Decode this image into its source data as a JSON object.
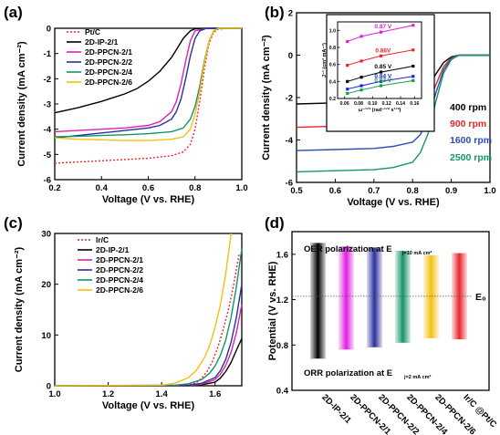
{
  "panels": [
    {
      "label": "(a)",
      "chart_data": {
        "type": "line",
        "xlabel": "Voltage (V vs. RHE)",
        "ylabel": "Current density (mA cm⁻²)",
        "xlim": [
          0.2,
          1.0
        ],
        "ylim": [
          -6,
          0
        ],
        "xticks": [
          "0.2",
          "0.4",
          "0.6",
          "0.8",
          "1.0"
        ],
        "yticks": [
          "0",
          "-1",
          "-2",
          "-3",
          "-4",
          "-5",
          "-6"
        ],
        "legend_position": "top-left",
        "series": [
          {
            "name": "Pt/C",
            "color": "#e8262a",
            "dash": true,
            "x": [
              0.2,
              0.3,
              0.4,
              0.5,
              0.6,
              0.7,
              0.75,
              0.78,
              0.8,
              0.82,
              0.84,
              0.86,
              0.88,
              0.9,
              0.95,
              1.0
            ],
            "y": [
              -5.35,
              -5.3,
              -5.25,
              -5.2,
              -5.15,
              -5.05,
              -4.9,
              -4.6,
              -4.0,
              -2.9,
              -1.6,
              -0.6,
              -0.15,
              -0.03,
              0,
              0
            ]
          },
          {
            "name": "2D-IP-2/1",
            "color": "#000000",
            "dash": false,
            "x": [
              0.2,
              0.3,
              0.4,
              0.5,
              0.55,
              0.6,
              0.65,
              0.7,
              0.72,
              0.75,
              0.78,
              0.8,
              0.85,
              0.9,
              1.0
            ],
            "y": [
              -3.35,
              -3.15,
              -2.9,
              -2.6,
              -2.4,
              -2.1,
              -1.7,
              -1.15,
              -0.85,
              -0.4,
              -0.1,
              -0.02,
              0,
              0,
              0
            ]
          },
          {
            "name": "2D-PPCN-2/1",
            "color": "#e020b0",
            "dash": false,
            "x": [
              0.2,
              0.3,
              0.4,
              0.5,
              0.6,
              0.65,
              0.7,
              0.72,
              0.74,
              0.76,
              0.78,
              0.8,
              0.85,
              1.0
            ],
            "y": [
              -4.1,
              -4.05,
              -4.0,
              -3.95,
              -3.85,
              -3.7,
              -3.3,
              -2.9,
              -2.2,
              -1.3,
              -0.5,
              -0.1,
              0,
              0
            ]
          },
          {
            "name": "2D-PPCN-2/2",
            "color": "#2b2f9e",
            "dash": false,
            "x": [
              0.2,
              0.3,
              0.4,
              0.5,
              0.6,
              0.65,
              0.7,
              0.72,
              0.74,
              0.76,
              0.78,
              0.8,
              0.82,
              0.85,
              1.0
            ],
            "y": [
              -4.35,
              -4.25,
              -4.15,
              -4.05,
              -3.95,
              -3.85,
              -3.6,
              -3.3,
              -2.8,
              -2.0,
              -1.1,
              -0.4,
              -0.1,
              0,
              0
            ]
          },
          {
            "name": "2D-PPCN-2/4",
            "color": "#14946a",
            "dash": false,
            "x": [
              0.2,
              0.3,
              0.4,
              0.5,
              0.6,
              0.7,
              0.75,
              0.78,
              0.8,
              0.82,
              0.84,
              0.86,
              0.88,
              0.9,
              1.0
            ],
            "y": [
              -4.3,
              -4.28,
              -4.25,
              -4.22,
              -4.18,
              -4.1,
              -3.95,
              -3.6,
              -3.1,
              -2.3,
              -1.3,
              -0.5,
              -0.1,
              0,
              0
            ]
          },
          {
            "name": "2D-PPCN-2/6",
            "color": "#f2c10f",
            "dash": false,
            "x": [
              0.2,
              0.3,
              0.4,
              0.5,
              0.6,
              0.7,
              0.75,
              0.78,
              0.8,
              0.82,
              0.84,
              0.86,
              0.88,
              0.9,
              1.0
            ],
            "y": [
              -4.35,
              -4.4,
              -4.42,
              -4.45,
              -4.45,
              -4.4,
              -4.3,
              -4.0,
              -3.4,
              -2.5,
              -1.4,
              -0.5,
              -0.1,
              0,
              0
            ]
          }
        ]
      }
    },
    {
      "label": "(b)",
      "chart_data": {
        "type": "line",
        "xlabel": "Voltage (V vs. RHE)",
        "ylabel": "Current density (mA cm⁻²)",
        "xlim": [
          0.5,
          1.0
        ],
        "ylim": [
          -6,
          2
        ],
        "xticks": [
          "0.5",
          "0.6",
          "0.7",
          "0.8",
          "0.9",
          "1.0"
        ],
        "yticks": [
          "-6",
          "-4",
          "-2",
          "0",
          "2"
        ],
        "legend_position": "right",
        "series": [
          {
            "name": "400 rpm",
            "color": "#000000",
            "x": [
              0.5,
              0.6,
              0.7,
              0.75,
              0.8,
              0.82,
              0.84,
              0.86,
              0.88,
              0.9,
              0.92,
              1.0
            ],
            "y": [
              -2.3,
              -2.25,
              -2.2,
              -2.15,
              -2.05,
              -1.9,
              -1.5,
              -0.9,
              -0.35,
              -0.08,
              0,
              0
            ]
          },
          {
            "name": "900 rpm",
            "color": "#e8262a",
            "x": [
              0.5,
              0.6,
              0.7,
              0.75,
              0.8,
              0.82,
              0.84,
              0.86,
              0.88,
              0.9,
              0.92,
              1.0
            ],
            "y": [
              -3.4,
              -3.35,
              -3.3,
              -3.25,
              -3.1,
              -2.85,
              -2.3,
              -1.4,
              -0.55,
              -0.12,
              0,
              0
            ]
          },
          {
            "name": "1600 rpm",
            "color": "#2b4fb5",
            "x": [
              0.5,
              0.6,
              0.7,
              0.75,
              0.8,
              0.82,
              0.84,
              0.86,
              0.88,
              0.9,
              0.92,
              1.0
            ],
            "y": [
              -4.5,
              -4.45,
              -4.4,
              -4.3,
              -4.1,
              -3.75,
              -3.0,
              -1.8,
              -0.7,
              -0.15,
              0,
              0
            ]
          },
          {
            "name": "2500 rpm",
            "color": "#14946a",
            "x": [
              0.5,
              0.6,
              0.7,
              0.75,
              0.8,
              0.82,
              0.84,
              0.86,
              0.88,
              0.9,
              0.92,
              1.0
            ],
            "y": [
              -5.5,
              -5.45,
              -5.4,
              -5.3,
              -5.05,
              -4.6,
              -3.7,
              -2.2,
              -0.85,
              -0.2,
              0,
              0
            ]
          }
        ],
        "inset": {
          "type": "scatter",
          "xlabel": "ω⁻¹ᐟ² (rad⁻¹ᐟ² s¹ᐟ²)",
          "ylabel": "J⁻¹ (cm² mA⁻¹)",
          "xlim": [
            0.05,
            0.17
          ],
          "ylim": [
            0.2,
            1.1
          ],
          "xticks": [
            "0.06",
            "0.08",
            "0.10",
            "0.12",
            "0.14",
            "0.16"
          ],
          "yticks": [
            "0.2",
            "0.4",
            "0.6",
            "0.8",
            "1.0"
          ],
          "series": [
            {
              "label": "0.87 V",
              "color": "#e020e0",
              "x": [
                0.064,
                0.084,
                0.112,
                0.158
              ],
              "y": [
                0.87,
                0.93,
                0.98,
                1.06
              ]
            },
            {
              "label": "0.86V",
              "color": "#e8262a",
              "x": [
                0.064,
                0.084,
                0.112,
                0.158
              ],
              "y": [
                0.59,
                0.64,
                0.7,
                0.77
              ]
            },
            {
              "label": "0.85 V",
              "color": "#000000",
              "x": [
                0.064,
                0.084,
                0.112,
                0.158
              ],
              "y": [
                0.4,
                0.45,
                0.51,
                0.58
              ]
            },
            {
              "label": "0.84 V",
              "color": "#2020e0",
              "x": [
                0.064,
                0.084,
                0.112,
                0.158
              ],
              "y": [
                0.31,
                0.35,
                0.4,
                0.46
              ]
            },
            {
              "label": "0.83 V",
              "color": "#14a050",
              "x": [
                0.064,
                0.084,
                0.112,
                0.158
              ],
              "y": [
                0.26,
                0.3,
                0.35,
                0.41
              ]
            }
          ]
        }
      }
    },
    {
      "label": "(c)",
      "chart_data": {
        "type": "line",
        "xlabel": "Voltage (V vs. RHE)",
        "ylabel": "Current density (mA cm⁻²)",
        "xlim": [
          1.0,
          1.7
        ],
        "ylim": [
          0,
          30
        ],
        "xticks": [
          "1.0",
          "1.2",
          "1.4",
          "1.6"
        ],
        "yticks": [
          "0",
          "10",
          "20",
          "30"
        ],
        "legend_position": "top-center",
        "series": [
          {
            "name": "Ir/C",
            "color": "#e8262a",
            "dash": true,
            "x": [
              1.0,
              1.4,
              1.5,
              1.53,
              1.55,
              1.57,
              1.59,
              1.61,
              1.63,
              1.65,
              1.67,
              1.69
            ],
            "y": [
              0,
              0,
              0.2,
              0.6,
              1.5,
              2.8,
              4.8,
              7.5,
              11,
              15,
              20,
              26
            ]
          },
          {
            "name": "2D-IP-2/1",
            "color": "#000000",
            "dash": false,
            "x": [
              1.0,
              1.5,
              1.55,
              1.6,
              1.62,
              1.64,
              1.66,
              1.68,
              1.7
            ],
            "y": [
              0,
              0,
              0.2,
              0.7,
              1.5,
              2.8,
              4.6,
              7.0,
              9.3
            ]
          },
          {
            "name": "2D-PPCN-2/1",
            "color": "#e020b0",
            "dash": false,
            "x": [
              1.0,
              1.5,
              1.55,
              1.6,
              1.62,
              1.64,
              1.66,
              1.68,
              1.7
            ],
            "y": [
              0,
              0.05,
              0.3,
              1.2,
              2.3,
              4.0,
              6.6,
              10.5,
              16
            ]
          },
          {
            "name": "2D-PPCN-2/2",
            "color": "#2b2f9e",
            "dash": false,
            "x": [
              1.0,
              1.5,
              1.55,
              1.6,
              1.62,
              1.64,
              1.66,
              1.68,
              1.7
            ],
            "y": [
              0,
              0.1,
              0.5,
              1.6,
              3.0,
              5.2,
              8.6,
              13.5,
              20
            ]
          },
          {
            "name": "2D-PPCN-2/4",
            "color": "#14946a",
            "dash": false,
            "x": [
              1.0,
              1.45,
              1.5,
              1.55,
              1.58,
              1.6,
              1.62,
              1.64,
              1.66,
              1.68,
              1.7
            ],
            "y": [
              0,
              0.1,
              0.4,
              1.2,
              2.5,
              3.9,
              6.0,
              9.0,
              13.5,
              19.5,
              27
            ]
          },
          {
            "name": "2D-PPCN-2/6",
            "color": "#f2c10f",
            "dash": false,
            "x": [
              1.0,
              1.4,
              1.45,
              1.5,
              1.53,
              1.56,
              1.58,
              1.6,
              1.62,
              1.64,
              1.66
            ],
            "y": [
              0,
              0.1,
              0.5,
              1.6,
              3.0,
              5.5,
              8.0,
              11.5,
              16.0,
              22.0,
              30
            ]
          }
        ]
      }
    },
    {
      "label": "(d)",
      "chart_data": {
        "type": "bar",
        "ylabel": "Potential (V vs. RHE)",
        "ylim": [
          0.4,
          1.8
        ],
        "yticks": [
          "0.4",
          "0.8",
          "1.2",
          "1.6"
        ],
        "categories": [
          "2D-IP-2/1",
          "2D-PPCN-2/1",
          "2D-PPCN-2/2",
          "2D-PPCN-2/4",
          "2D-PPCN-2/6",
          "Ir/C @Pt/C"
        ],
        "oer_values": [
          1.7,
          1.67,
          1.66,
          1.63,
          1.59,
          1.61
        ],
        "orr_values": [
          0.68,
          0.76,
          0.78,
          0.82,
          0.86,
          0.85
        ],
        "colors": [
          "#000000",
          "#e020e0",
          "#2b2f9e",
          "#14946a",
          "#f2c10f",
          "#e8262a"
        ],
        "reference_line": {
          "label": "E₀",
          "value": 1.23
        },
        "top_annotation_main": "OER polarization at E",
        "top_annotation_sub": "j=10 mA cm²",
        "bottom_annotation_main": "ORR polarization at E",
        "bottom_annotation_sub": "j=2 mA cm²"
      }
    }
  ]
}
